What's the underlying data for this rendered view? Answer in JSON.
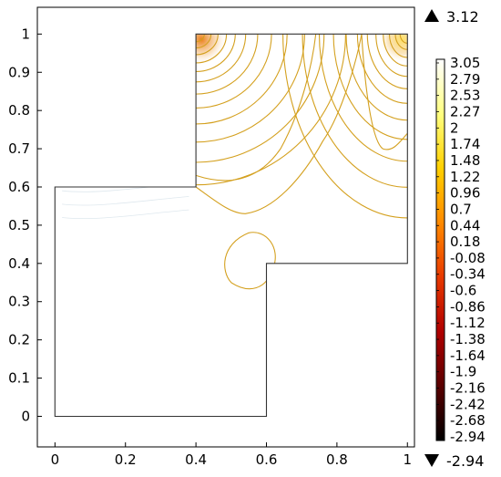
{
  "chart_data": {
    "type": "contour",
    "title": "",
    "xlabel": "",
    "ylabel": "",
    "xlim": [
      -0.05,
      1.02
    ],
    "ylim": [
      -0.08,
      1.07
    ],
    "x_ticks": [
      "0",
      "0.2",
      "0.4",
      "0.6",
      "0.8",
      "1"
    ],
    "y_ticks": [
      "0",
      "0.1",
      "0.2",
      "0.3",
      "0.4",
      "0.5",
      "0.6",
      "0.7",
      "0.8",
      "0.9",
      "1"
    ],
    "domain_boundary": [
      [
        0,
        0
      ],
      [
        0.6,
        0
      ],
      [
        0.6,
        0.4
      ],
      [
        1,
        0.4
      ],
      [
        1,
        1
      ],
      [
        0.4,
        1
      ],
      [
        0.4,
        0.6
      ],
      [
        0,
        0.6
      ],
      [
        0,
        0
      ]
    ],
    "contour_color": "#d4a01e",
    "colorbar": {
      "levels": [
        "3.05",
        "2.79",
        "2.53",
        "2.27",
        "2",
        "1.74",
        "1.48",
        "1.22",
        "0.96",
        "0.7",
        "0.44",
        "0.18",
        "-0.08",
        "-0.34",
        "-0.6",
        "-0.86",
        "-1.12",
        "-1.38",
        "-1.64",
        "-1.9",
        "-2.16",
        "-2.42",
        "-2.68",
        "-2.94"
      ],
      "max_label": "3.12",
      "min_label": "-2.94",
      "colormap": [
        "#000000",
        "#5a0000",
        "#b00000",
        "#e83a00",
        "#ff8a00",
        "#ffd000",
        "#ffff80",
        "#ffffff"
      ]
    }
  }
}
